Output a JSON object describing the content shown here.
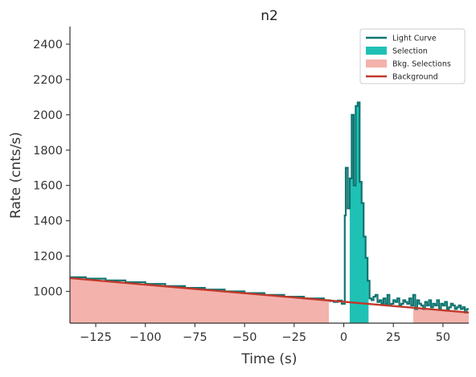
{
  "chart_data": {
    "type": "line",
    "title": "n2",
    "xlabel": "Time (s)",
    "ylabel": "Rate (cnts/s)",
    "xlim": [
      -138,
      63
    ],
    "ylim": [
      820,
      2500
    ],
    "xticks": [
      -125,
      -100,
      -75,
      -50,
      -25,
      0,
      25,
      50
    ],
    "xtick_labels": [
      "−125",
      "−100",
      "−75",
      "−50",
      "−25",
      "0",
      "25",
      "50"
    ],
    "yticks": [
      1000,
      1200,
      1400,
      1600,
      1800,
      2000,
      2200,
      2400
    ],
    "ytick_labels": [
      "1000",
      "1200",
      "1400",
      "1600",
      "1800",
      "2000",
      "2200",
      "2400"
    ],
    "grid": false,
    "legend_position": "top-right",
    "legend": [
      {
        "label": "Light Curve",
        "kind": "line",
        "color": "#0e7470"
      },
      {
        "label": "Selection",
        "kind": "patch",
        "color": "#1fc1b5"
      },
      {
        "label": "Bkg. Selections",
        "kind": "patch",
        "color": "#f4b2ac"
      },
      {
        "label": "Background",
        "kind": "line",
        "color": "#c0392b"
      }
    ],
    "colors": {
      "light_curve": "#0e7470",
      "selection": "#1fc1b5",
      "bkg_selection": "#f4b2ac",
      "background": "#c0392b"
    },
    "background_fit": {
      "x": [
        -138,
        63
      ],
      "y": [
        1075,
        880
      ]
    },
    "bkg_selections": [
      [
        -138,
        -7.5
      ],
      [
        35,
        63
      ]
    ],
    "selection": [
      3,
      12.5
    ],
    "light_curve": {
      "x": [
        -138,
        -130,
        -120,
        -110,
        -100,
        -90,
        -80,
        -70,
        -60,
        -50,
        -40,
        -30,
        -20,
        -10,
        -7,
        -5,
        -3,
        -1,
        0.5,
        1,
        2,
        3,
        4,
        5,
        6,
        7,
        8,
        9,
        10,
        11,
        12,
        13,
        14,
        15,
        16,
        17,
        18,
        19,
        20,
        21,
        22,
        23,
        24,
        25,
        26,
        27,
        28,
        29,
        30,
        31,
        32,
        33,
        34,
        35,
        36,
        37,
        38,
        39,
        40,
        41,
        42,
        43,
        44,
        45,
        46,
        47,
        48,
        49,
        50,
        51,
        52,
        53,
        54,
        55,
        56,
        57,
        58,
        59,
        60,
        61,
        62
      ],
      "y": [
        1080,
        1072,
        1062,
        1052,
        1042,
        1030,
        1020,
        1010,
        1000,
        990,
        980,
        970,
        960,
        950,
        945,
        940,
        948,
        930,
        1430,
        1700,
        1470,
        1640,
        2000,
        1600,
        2050,
        2070,
        1620,
        1500,
        1310,
        1190,
        1060,
        960,
        950,
        970,
        980,
        940,
        950,
        930,
        960,
        930,
        980,
        920,
        930,
        950,
        940,
        960,
        920,
        930,
        950,
        940,
        930,
        960,
        920,
        980,
        900,
        950,
        930,
        920,
        900,
        940,
        920,
        950,
        910,
        930,
        920,
        950,
        900,
        930,
        920,
        940,
        900,
        910,
        930,
        920,
        900,
        910,
        920,
        900,
        910,
        880,
        900
      ]
    }
  }
}
